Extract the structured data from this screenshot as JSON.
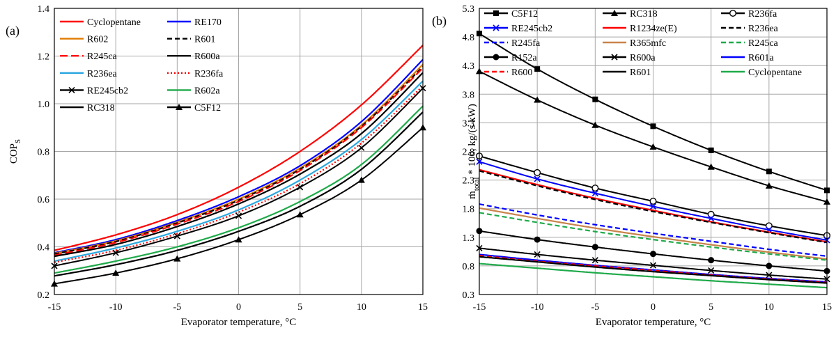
{
  "chart_data": [
    {
      "type": "line",
      "panel_label": "(a)",
      "xlabel": "Evaporator temperature,  °C",
      "ylabel_main": "COP",
      "ylabel_sub": "S",
      "x": [
        -15,
        -10,
        -5,
        0,
        5,
        10,
        15
      ],
      "xlim": [
        -15,
        15
      ],
      "ylim": [
        0.2,
        1.4
      ],
      "xticks": [
        "-15",
        "-10",
        "-5",
        "0",
        "5",
        "10",
        "15"
      ],
      "yticks": [
        "0.2",
        "0.4",
        "0.6",
        "0.8",
        "1.0",
        "1.2",
        "1.4"
      ],
      "grid": true,
      "series": [
        {
          "name": "Cyclopentane",
          "color": "#ff0000",
          "dash": "solid",
          "marker": "none",
          "values": [
            0.385,
            0.45,
            0.535,
            0.65,
            0.8,
            0.995,
            1.245
          ]
        },
        {
          "name": "RE170",
          "color": "#0000ff",
          "dash": "solid",
          "marker": "none",
          "values": [
            0.375,
            0.43,
            0.51,
            0.61,
            0.74,
            0.925,
            1.185
          ]
        },
        {
          "name": "R602",
          "color": "#e07b00",
          "dash": "solid",
          "marker": "none",
          "values": [
            0.372,
            0.425,
            0.503,
            0.6,
            0.73,
            0.91,
            1.165
          ]
        },
        {
          "name": "R601",
          "color": "#000000",
          "dash": "dashed",
          "marker": "none",
          "values": [
            0.37,
            0.422,
            0.5,
            0.595,
            0.725,
            0.905,
            1.155
          ]
        },
        {
          "name": "R245ca",
          "color": "#ff0000",
          "dash": "longdash",
          "marker": "none",
          "values": [
            0.365,
            0.418,
            0.495,
            0.59,
            0.72,
            0.9,
            1.15
          ]
        },
        {
          "name": "R600a",
          "color": "#000000",
          "dash": "solid",
          "marker": "none",
          "values": [
            0.36,
            0.41,
            0.485,
            0.58,
            0.705,
            0.875,
            1.13
          ]
        },
        {
          "name": "R236ea",
          "color": "#2aa7e0",
          "dash": "solid",
          "marker": "none",
          "values": [
            0.34,
            0.395,
            0.465,
            0.555,
            0.68,
            0.85,
            1.095
          ]
        },
        {
          "name": "R236fa",
          "color": "#ff0000",
          "dash": "dotted",
          "marker": "none",
          "values": [
            0.335,
            0.385,
            0.455,
            0.545,
            0.665,
            0.835,
            1.075
          ]
        },
        {
          "name": "RE245cb2",
          "color": "#000000",
          "dash": "solid",
          "marker": "x",
          "values": [
            0.32,
            0.375,
            0.445,
            0.53,
            0.65,
            0.815,
            1.065
          ]
        },
        {
          "name": "R602a",
          "color": "#1faa4a",
          "dash": "solid",
          "marker": "none",
          "values": [
            0.29,
            0.34,
            0.4,
            0.48,
            0.59,
            0.745,
            0.99
          ]
        },
        {
          "name": "RC318",
          "color": "#000000",
          "dash": "solid",
          "marker": "none",
          "values": [
            0.278,
            0.325,
            0.385,
            0.465,
            0.57,
            0.725,
            0.965
          ]
        },
        {
          "name": "C5F12",
          "color": "#000000",
          "dash": "solid",
          "marker": "triangle",
          "values": [
            0.245,
            0.29,
            0.35,
            0.43,
            0.535,
            0.68,
            0.9
          ]
        }
      ]
    },
    {
      "type": "line",
      "panel_label": "(b)",
      "xlabel": "Evaporator temperature,  °C",
      "ylabel_main": "ṁ",
      "ylabel_sub": "total",
      "ylabel_rest": " * 100, kg/(s kW)",
      "x": [
        -15,
        -10,
        -5,
        0,
        5,
        10,
        15
      ],
      "xlim": [
        -15,
        15
      ],
      "ylim": [
        0.3,
        5.3
      ],
      "xticks": [
        "-15",
        "-10",
        "-5",
        "0",
        "5",
        "10",
        "15"
      ],
      "yticks": [
        "0.3",
        "0.8",
        "1.3",
        "1.8",
        "2.3",
        "2.8",
        "3.3",
        "3.8",
        "4.3",
        "4.8",
        "5.3"
      ],
      "grid": true,
      "series": [
        {
          "name": "C5F12",
          "color": "#000000",
          "dash": "solid",
          "marker": "square",
          "values": [
            4.86,
            4.24,
            3.71,
            3.24,
            2.82,
            2.45,
            2.12
          ]
        },
        {
          "name": "RC318",
          "color": "#000000",
          "dash": "solid",
          "marker": "triangle",
          "values": [
            4.2,
            3.7,
            3.26,
            2.88,
            2.53,
            2.2,
            1.92
          ]
        },
        {
          "name": "R236fa",
          "color": "#000000",
          "dash": "solid",
          "marker": "circle-open",
          "values": [
            2.72,
            2.43,
            2.16,
            1.93,
            1.7,
            1.5,
            1.33
          ]
        },
        {
          "name": "RE245cb2",
          "color": "#0000ff",
          "dash": "solid",
          "marker": "x",
          "values": [
            2.62,
            2.32,
            2.07,
            1.84,
            1.63,
            1.43,
            1.25
          ]
        },
        {
          "name": "R1234ze(E)",
          "color": "#ff0000",
          "dash": "solid",
          "marker": "none",
          "values": [
            2.48,
            2.22,
            1.98,
            1.77,
            1.57,
            1.39,
            1.22
          ]
        },
        {
          "name": "R236ea",
          "color": "#000000",
          "dash": "dashed",
          "marker": "none",
          "values": [
            2.46,
            2.2,
            1.96,
            1.75,
            1.56,
            1.38,
            1.21
          ]
        },
        {
          "name": "R245fa",
          "color": "#0000ff",
          "dash": "dashed",
          "marker": "none",
          "values": [
            1.88,
            1.69,
            1.52,
            1.37,
            1.23,
            1.09,
            0.97
          ]
        },
        {
          "name": "R365mfc",
          "color": "#c8834a",
          "dash": "solid",
          "marker": "none",
          "values": [
            1.81,
            1.63,
            1.46,
            1.31,
            1.17,
            1.04,
            0.92
          ]
        },
        {
          "name": "R245ca",
          "color": "#1faa4a",
          "dash": "dashed",
          "marker": "none",
          "values": [
            1.73,
            1.56,
            1.4,
            1.26,
            1.13,
            1.01,
            0.9
          ]
        },
        {
          "name": "R152a",
          "color": "#000000",
          "dash": "solid",
          "marker": "circle",
          "values": [
            1.41,
            1.26,
            1.13,
            1.01,
            0.9,
            0.8,
            0.71
          ]
        },
        {
          "name": "R600a",
          "color": "#000000",
          "dash": "solid",
          "marker": "x",
          "values": [
            1.11,
            1.0,
            0.9,
            0.81,
            0.72,
            0.64,
            0.57
          ]
        },
        {
          "name": "R601a",
          "color": "#0000ff",
          "dash": "solid",
          "marker": "none",
          "values": [
            1.0,
            0.9,
            0.81,
            0.73,
            0.65,
            0.58,
            0.52
          ]
        },
        {
          "name": "R600",
          "color": "#ff0000",
          "dash": "dashed",
          "marker": "none",
          "values": [
            0.98,
            0.88,
            0.8,
            0.72,
            0.64,
            0.57,
            0.51
          ]
        },
        {
          "name": "R601",
          "color": "#000000",
          "dash": "solid",
          "marker": "none",
          "values": [
            0.96,
            0.87,
            0.78,
            0.7,
            0.63,
            0.56,
            0.5
          ]
        },
        {
          "name": "Cyclopentane",
          "color": "#1faa4a",
          "dash": "solid",
          "marker": "none",
          "values": [
            0.84,
            0.76,
            0.68,
            0.61,
            0.54,
            0.48,
            0.42
          ]
        }
      ]
    }
  ]
}
